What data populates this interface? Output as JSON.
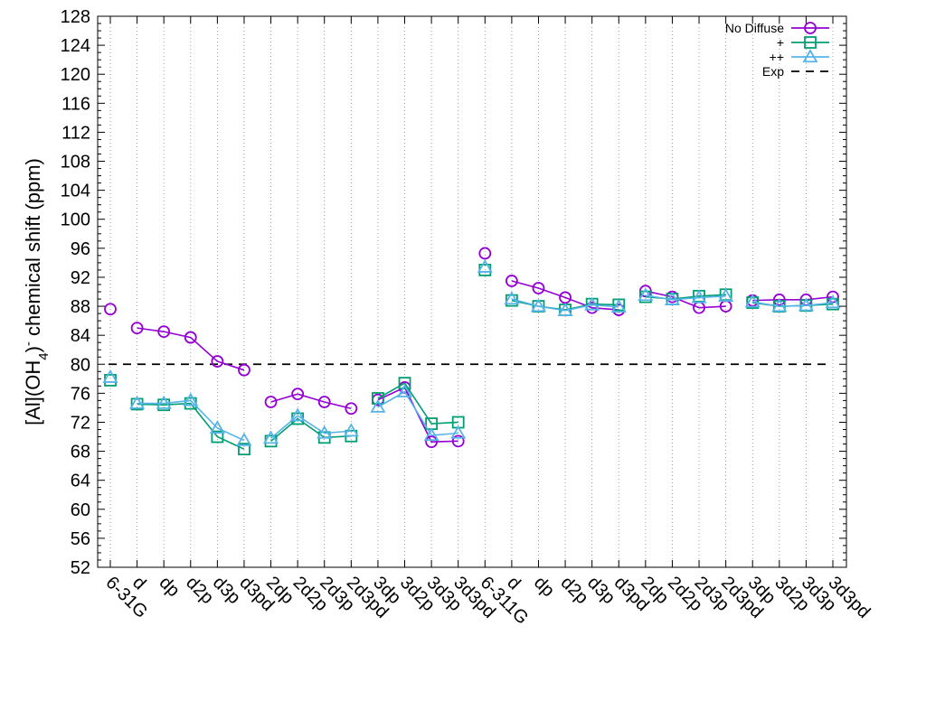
{
  "chart_data": {
    "type": "line",
    "title": "",
    "xlabel": "",
    "ylabel": {
      "prefix": "[Al](OH",
      "sub": "4",
      "mid": ")",
      "sup": "-",
      "suffix": " chemical shift (ppm)"
    },
    "ylim": [
      52,
      128
    ],
    "yticks": [
      52,
      56,
      60,
      64,
      68,
      72,
      76,
      80,
      84,
      88,
      92,
      96,
      100,
      104,
      108,
      112,
      116,
      120,
      124,
      128
    ],
    "grid": "vertical-dotted",
    "legend_position": "top-right",
    "categories": [
      "6-31G",
      "d",
      "dp",
      "d2p",
      "d3p",
      "d3pd",
      "2dp",
      "2d2p",
      "2d3p",
      "2d3pd",
      "3dp",
      "3d2p",
      "3d3p",
      "3d3pd",
      "6-311G",
      "d",
      "dp",
      "d2p",
      "d3p",
      "d3pd",
      "2dp",
      "2d2p",
      "2d3p",
      "2d3pd",
      "3dp",
      "3d2p",
      "3d3p",
      "3d3pd"
    ],
    "segments": [
      [
        0,
        0
      ],
      [
        1,
        5
      ],
      [
        6,
        9
      ],
      [
        10,
        13
      ],
      [
        14,
        14
      ],
      [
        15,
        19
      ],
      [
        20,
        23
      ],
      [
        24,
        27
      ]
    ],
    "series": [
      {
        "name": "No Diffuse",
        "color": "#9400d3",
        "marker": "circle",
        "values": [
          87.6,
          85.0,
          84.5,
          83.7,
          80.4,
          79.2,
          74.8,
          75.9,
          74.8,
          73.9,
          75.1,
          76.8,
          69.3,
          69.4,
          95.3,
          91.5,
          90.5,
          89.2,
          87.8,
          87.5,
          90.1,
          89.3,
          87.8,
          88.0,
          88.8,
          88.9,
          88.9,
          89.3
        ]
      },
      {
        "name": "+",
        "color": "#009e73",
        "marker": "square",
        "values": [
          77.8,
          74.5,
          74.4,
          74.6,
          70.0,
          68.3,
          69.4,
          72.5,
          69.9,
          70.1,
          75.3,
          77.4,
          71.8,
          72.0,
          93.0,
          88.8,
          88.0,
          87.5,
          88.3,
          88.2,
          89.3,
          89.0,
          89.4,
          89.6,
          88.5,
          88.0,
          88.1,
          88.3
        ]
      },
      {
        "name": "++",
        "color": "#56b4e9",
        "marker": "triangle",
        "values": [
          78.2,
          74.6,
          74.6,
          75.0,
          71.2,
          69.5,
          69.8,
          72.9,
          70.5,
          70.8,
          74.1,
          76.2,
          70.2,
          70.5,
          93.4,
          89.0,
          88.0,
          87.4,
          88.2,
          87.9,
          89.5,
          88.9,
          89.2,
          89.4,
          88.6,
          88.0,
          88.1,
          88.5
        ]
      }
    ],
    "reference": {
      "name": "Exp",
      "value": 80.0,
      "color": "#000000",
      "style": "dashed"
    }
  }
}
